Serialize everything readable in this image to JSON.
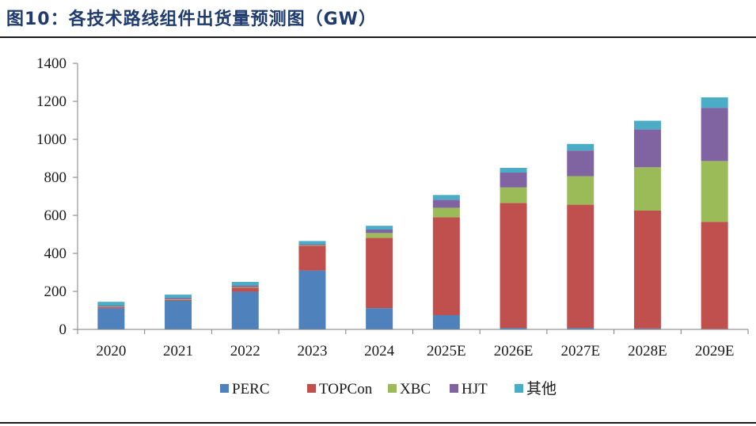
{
  "figure_title": "图10：各技术路线组件出货量预测图（GW）",
  "chart_data": {
    "type": "bar",
    "stacked": true,
    "categories": [
      "2020",
      "2021",
      "2022",
      "2023",
      "2024",
      "2025E",
      "2026E",
      "2027E",
      "2028E",
      "2029E"
    ],
    "series": [
      {
        "name": "PERC",
        "color": "#4f81bd",
        "values": [
          112,
          150,
          198,
          310,
          112,
          75,
          8,
          8,
          5,
          3
        ]
      },
      {
        "name": "TOPCon",
        "color": "#c0504d",
        "values": [
          5,
          5,
          22,
          130,
          370,
          515,
          657,
          648,
          620,
          563
        ]
      },
      {
        "name": "XBC",
        "color": "#9bbb59",
        "values": [
          3,
          3,
          3,
          3,
          25,
          50,
          82,
          150,
          228,
          320
        ]
      },
      {
        "name": "HJT",
        "color": "#8064a2",
        "values": [
          5,
          7,
          8,
          5,
          18,
          42,
          78,
          135,
          200,
          280
        ]
      },
      {
        "name": "其他",
        "color": "#4bacc6",
        "values": [
          20,
          18,
          19,
          17,
          20,
          25,
          25,
          35,
          45,
          55
        ]
      }
    ],
    "ylim": [
      0,
      1400
    ],
    "yticks": [
      0,
      200,
      400,
      600,
      800,
      1000,
      1200,
      1400
    ],
    "grid": false,
    "legend_position": "bottom"
  }
}
